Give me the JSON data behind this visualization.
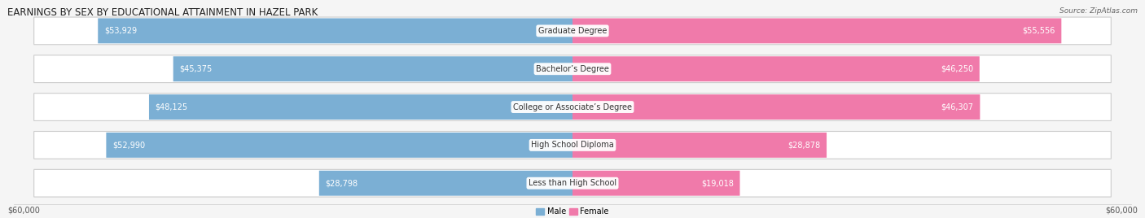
{
  "title": "EARNINGS BY SEX BY EDUCATIONAL ATTAINMENT IN HAZEL PARK",
  "source": "Source: ZipAtlas.com",
  "categories": [
    "Less than High School",
    "High School Diploma",
    "College or Associate’s Degree",
    "Bachelor’s Degree",
    "Graduate Degree"
  ],
  "male_values": [
    28798,
    52990,
    48125,
    45375,
    53929
  ],
  "female_values": [
    19018,
    28878,
    46307,
    46250,
    55556
  ],
  "max_value": 60000,
  "male_color": "#7bafd4",
  "female_color": "#f07aaa",
  "male_label": "Male",
  "female_label": "Female",
  "bg_color": "#f5f5f5",
  "bar_bg_color": "#e8e8ec",
  "bar_bg_color2": "#ffffff",
  "axis_label": "$60,000",
  "label_fontsize": 7.0,
  "title_fontsize": 8.5,
  "source_fontsize": 6.5,
  "bar_height": 0.72,
  "value_text_color_inside": "white",
  "value_text_color_outside": "#555555",
  "cat_text_color": "#333333"
}
